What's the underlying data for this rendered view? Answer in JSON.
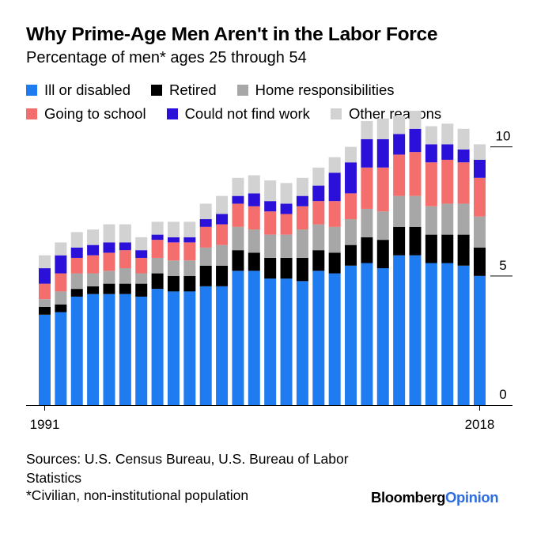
{
  "header": {
    "title": "Why Prime-Age Men Aren't in the Labor Force",
    "subtitle": "Percentage of men* ages 25 through 54"
  },
  "chart_data": {
    "type": "bar",
    "stacked": true,
    "categories": [
      "1991",
      "1992",
      "1993",
      "1994",
      "1995",
      "1996",
      "1997",
      "1998",
      "1999",
      "2000",
      "2001",
      "2002",
      "2003",
      "2004",
      "2005",
      "2006",
      "2007",
      "2008",
      "2009",
      "2010",
      "2011",
      "2012",
      "2013",
      "2014",
      "2015",
      "2016",
      "2017",
      "2018"
    ],
    "x_tick_labels": [
      "1991",
      "2018"
    ],
    "series": [
      {
        "name": "Ill or disabled",
        "color": "#1f7bf0",
        "values": [
          3.5,
          3.6,
          4.2,
          4.3,
          4.3,
          4.3,
          4.2,
          4.5,
          4.4,
          4.4,
          4.6,
          4.6,
          5.2,
          5.2,
          4.9,
          4.9,
          4.8,
          5.2,
          5.1,
          5.4,
          5.5,
          5.3,
          5.8,
          5.8,
          5.5,
          5.5,
          5.4,
          5.0
        ]
      },
      {
        "name": "Retired",
        "color": "#000000",
        "values": [
          0.3,
          0.3,
          0.3,
          0.3,
          0.4,
          0.4,
          0.5,
          0.6,
          0.6,
          0.6,
          0.8,
          0.8,
          0.8,
          0.7,
          0.8,
          0.8,
          0.9,
          0.8,
          0.8,
          0.8,
          1.0,
          1.1,
          1.1,
          1.1,
          1.1,
          1.1,
          1.2,
          1.1
        ]
      },
      {
        "name": "Home responsibilities",
        "color": "#a7a7a7",
        "values": [
          0.3,
          0.5,
          0.6,
          0.5,
          0.5,
          0.6,
          0.4,
          0.6,
          0.6,
          0.6,
          0.7,
          0.8,
          0.9,
          0.9,
          0.9,
          0.9,
          1.1,
          1.0,
          1.0,
          1.0,
          1.1,
          1.1,
          1.2,
          1.2,
          1.1,
          1.2,
          1.2,
          1.2
        ]
      },
      {
        "name": "Going to school",
        "color": "#f56e6e",
        "values": [
          0.6,
          0.7,
          0.6,
          0.7,
          0.7,
          0.7,
          0.6,
          0.7,
          0.7,
          0.7,
          0.8,
          0.8,
          0.9,
          0.9,
          0.9,
          0.8,
          0.9,
          0.9,
          1.0,
          1.0,
          1.6,
          1.7,
          1.6,
          1.7,
          1.7,
          1.7,
          1.6,
          1.5
        ]
      },
      {
        "name": "Could not find work",
        "color": "#2a10d8",
        "values": [
          0.6,
          0.7,
          0.4,
          0.4,
          0.4,
          0.3,
          0.3,
          0.2,
          0.2,
          0.2,
          0.3,
          0.4,
          0.3,
          0.5,
          0.4,
          0.4,
          0.4,
          0.6,
          1.1,
          1.2,
          1.1,
          1.1,
          0.8,
          0.9,
          0.7,
          0.6,
          0.5,
          0.7
        ]
      },
      {
        "name": "Other reasons",
        "color": "#d2d2d2",
        "values": [
          0.5,
          0.5,
          0.6,
          0.6,
          0.7,
          0.7,
          0.5,
          0.5,
          0.6,
          0.6,
          0.6,
          0.7,
          0.7,
          0.7,
          0.8,
          0.8,
          0.7,
          0.7,
          0.6,
          0.6,
          0.7,
          0.8,
          0.7,
          0.7,
          0.7,
          0.8,
          0.8,
          0.6
        ]
      }
    ],
    "ylim": [
      0,
      11
    ],
    "y_ticks": [
      0,
      5,
      10
    ],
    "legend_position": "top"
  },
  "footer": {
    "sources": "Sources: U.S. Census Bureau, U.S. Bureau of Labor Statistics",
    "note": "*Civilian, non-institutional population",
    "logo_part1": "Bloomberg",
    "logo_part2": "Opinion"
  }
}
